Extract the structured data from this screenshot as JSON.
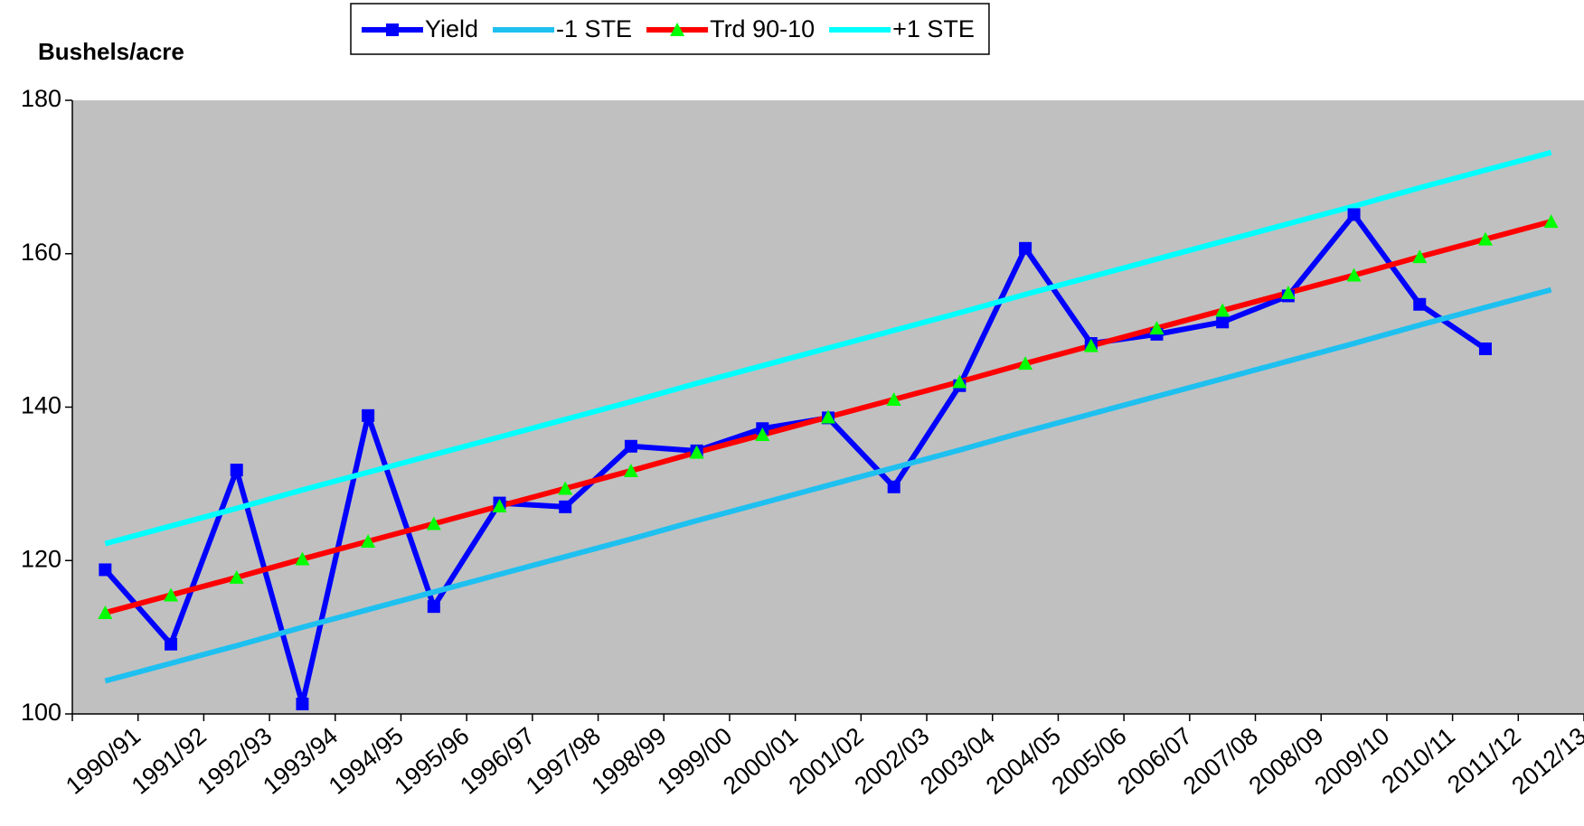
{
  "chart_data": {
    "type": "line",
    "y_label": "Bushels/acre",
    "categories": [
      "1990/91",
      "1991/92",
      "1992/93",
      "1993/94",
      "1994/95",
      "1995/96",
      "1996/97",
      "1997/98",
      "1998/99",
      "1999/00",
      "2000/01",
      "2001/02",
      "2002/03",
      "2003/04",
      "2004/05",
      "2005/06",
      "2006/07",
      "2007/08",
      "2008/09",
      "2009/10",
      "2010/11",
      "2011/12",
      "2012/13"
    ],
    "series": [
      {
        "name": "Yield",
        "color": "#0000ff",
        "marker": "square",
        "values": [
          118.8,
          109.1,
          131.8,
          101.3,
          138.9,
          114.0,
          127.5,
          127.0,
          134.9,
          134.3,
          137.2,
          138.6,
          129.6,
          142.8,
          160.7,
          148.3,
          149.5,
          151.1,
          154.5,
          165.1,
          153.4,
          147.6,
          null
        ]
      },
      {
        "name": "-1 STE",
        "color": "#1ec0f0",
        "marker": "none",
        "values": [
          104.3,
          106.6,
          108.9,
          111.3,
          113.6,
          115.9,
          118.2,
          120.5,
          122.8,
          125.2,
          127.5,
          129.8,
          132.1,
          134.4,
          136.8,
          139.1,
          141.4,
          143.7,
          146.0,
          148.3,
          150.7,
          153.0,
          155.3
        ]
      },
      {
        "name": "Trd 90-10",
        "color": "#ff0000",
        "marker": "triangle",
        "marker_color": "#00ff00",
        "values": [
          113.2,
          115.5,
          117.8,
          120.2,
          122.5,
          124.8,
          127.1,
          129.4,
          131.7,
          134.1,
          136.4,
          138.7,
          141.0,
          143.3,
          145.7,
          148.0,
          150.3,
          152.6,
          154.9,
          157.2,
          159.6,
          161.9,
          164.2
        ]
      },
      {
        "name": "+1 STE",
        "color": "#00ffff",
        "marker": "none",
        "values": [
          122.2,
          124.5,
          126.8,
          129.2,
          131.5,
          133.8,
          136.1,
          138.4,
          140.7,
          143.1,
          145.4,
          147.7,
          150.0,
          152.3,
          154.7,
          157.0,
          159.3,
          161.6,
          163.9,
          166.2,
          168.6,
          170.9,
          173.2
        ]
      }
    ],
    "ylim": [
      100,
      180
    ],
    "yticks": [
      100,
      120,
      140,
      160,
      180
    ],
    "plot_background": "#c0c0c0",
    "legend": "top"
  }
}
